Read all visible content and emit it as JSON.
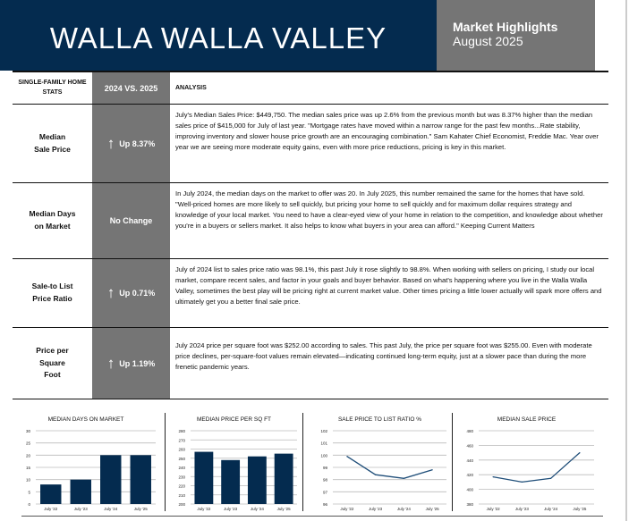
{
  "header": {
    "title": "WALLA WALLA VALLEY",
    "subtitle": "Market Highlights",
    "date": "August 2025"
  },
  "table": {
    "headers": [
      "SINGLE-FAMILY HOME STATS",
      "2024 VS. 2025",
      "ANALYSIS"
    ],
    "rows": [
      {
        "stat": "Median Sale Price",
        "change": "Up 8.37%",
        "arrow": "up-arrow",
        "analysis": "July's Median Sales Price: $449,750. The median sales price was up 2.6% from the previous month but was 8.37% higher than the median sales price of $415,000 for July of last year.  \"Mortgage rates have moved within a narrow range for the past few months...Rate stability, improving inventory and slower house price growth are an encouraging combination.\"  Sam Kahater Chief Economist, Freddie Mac. Year over year we are seeing more moderate equity gains, even with more price reductions, pricing is key in this market."
      },
      {
        "stat": "Median Days on Market",
        "change": "No Change",
        "arrow": "",
        "analysis": "In July 2024, the median days on the market to offer was 20. In July 2025, this number remained the same for the homes that have sold.  \"Well-priced homes are more likely to sell quickly, but pricing your home to sell quickly and for maximum dollar requires strategy and knowledge of your local market. You need to have a clear-eyed view of your home in relation to the competition, and knowledge about whether you're in a buyers or sellers market. It also helps to know what buyers in your area can afford.\" Keeping Current Matters"
      },
      {
        "stat": "Sale-to List Price Ratio",
        "change": "Up  0.71%",
        "arrow": "up-arrow",
        "analysis": "July of 2024 list to sales price ratio was 98.1%, this past July it rose slightly to 98.8%.  When working with sellers on pricing, I study our local market, compare recent sales, and factor in your goals and buyer behavior.  Based on what's happening where you live in the Walla Walla Valley, sometimes the best play will be pricing right at current market value. Other times pricing a little lower actually will spark more offers and ultimately get you a better final sale price."
      },
      {
        "stat": "Price per Square Foot",
        "change": "Up 1.19%",
        "arrow": "up-arrow",
        "analysis": "July 2024 price per square foot was $252.00 according to sales. This past July, the price per square foot was $255.00. Even with moderate price declines, per-square-foot values remain elevated—indicating continued long-term equity, just at a slower pace than during the more frenetic pandemic years."
      }
    ]
  },
  "colors": {
    "navy": "#042b4f",
    "gray": "#757575"
  },
  "chart_data": [
    {
      "type": "bar",
      "title": "MEDIAN DAYS ON MARKET",
      "categories": [
        "July '22",
        "July '23",
        "July '24",
        "July '25"
      ],
      "values": [
        8,
        10,
        20,
        20
      ],
      "ylim": [
        0,
        30
      ],
      "yticks": [
        0,
        5,
        10,
        15,
        20,
        25,
        30
      ],
      "grid": true
    },
    {
      "type": "bar",
      "title": "MEDIAN PRICE PER SQ FT",
      "categories": [
        "July '22",
        "July '23",
        "July '24",
        "July '25"
      ],
      "values": [
        257,
        248,
        252,
        255
      ],
      "ylim": [
        200,
        280
      ],
      "yticks": [
        200,
        210,
        220,
        230,
        240,
        250,
        260,
        270,
        280
      ],
      "grid": true
    },
    {
      "type": "line",
      "title": "SALE PRICE TO LIST RATIO %",
      "categories": [
        "July '22",
        "July '23",
        "July '24",
        "July '25"
      ],
      "values": [
        99.9,
        98.4,
        98.1,
        98.8
      ],
      "ylim": [
        96,
        102
      ],
      "yticks": [
        96,
        97,
        98,
        99,
        100,
        101,
        102
      ],
      "grid": true
    },
    {
      "type": "line",
      "title": "MEDIAN SALE PRICE",
      "categories": [
        "July '22",
        "July '23",
        "July '24",
        "July '25"
      ],
      "values": [
        417,
        410,
        415,
        450
      ],
      "ylim": [
        380,
        480
      ],
      "yticks": [
        380,
        400,
        420,
        440,
        460,
        480
      ],
      "grid": true
    }
  ]
}
